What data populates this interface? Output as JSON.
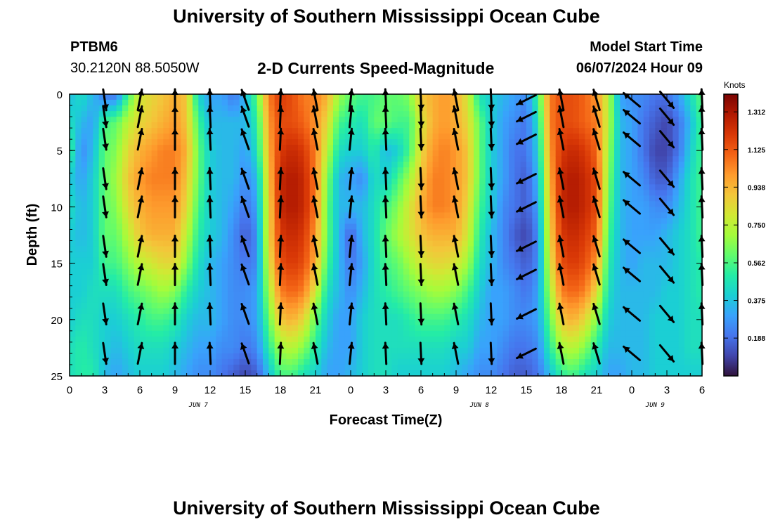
{
  "header": {
    "site_title": "University of Southern Mississippi Ocean Cube",
    "station_id": "PTBM6",
    "coordinates": "30.2120N  88.5050W",
    "chart_title": "2-D Currents Speed-Magnitude",
    "model_start_label": "Model Start Time",
    "model_start_value": "06/07/2024 Hour 09"
  },
  "footer": {
    "site_title": "University of Southern Mississippi Ocean Cube"
  },
  "colors": {
    "colormap": [
      "#30123b",
      "#4145ab",
      "#4675ed",
      "#39a2fc",
      "#1bcfd4",
      "#24eca6",
      "#61fc6c",
      "#a4fc3b",
      "#d1e834",
      "#f3c63a",
      "#fe9b2d",
      "#f36315",
      "#d93806",
      "#b11901",
      "#7a0403"
    ],
    "arrow": "#000000"
  },
  "chart_data": {
    "type": "heatmap",
    "title": "2-D Currents Speed-Magnitude",
    "xlabel": "Forecast Time(Z)",
    "ylabel": "Depth (ft)",
    "colorbar_label": "Knots",
    "x_range_hours": [
      0,
      54
    ],
    "y_range_ft": [
      0,
      25
    ],
    "y_inverted": true,
    "x_ticks": [
      {
        "hour": 0,
        "label": "0"
      },
      {
        "hour": 3,
        "label": "3"
      },
      {
        "hour": 6,
        "label": "6"
      },
      {
        "hour": 9,
        "label": "9"
      },
      {
        "hour": 12,
        "label": "12"
      },
      {
        "hour": 15,
        "label": "15"
      },
      {
        "hour": 18,
        "label": "18"
      },
      {
        "hour": 21,
        "label": "21"
      },
      {
        "hour": 24,
        "label": "0"
      },
      {
        "hour": 27,
        "label": "3"
      },
      {
        "hour": 30,
        "label": "6"
      },
      {
        "hour": 33,
        "label": "9"
      },
      {
        "hour": 36,
        "label": "12"
      },
      {
        "hour": 39,
        "label": "15"
      },
      {
        "hour": 42,
        "label": "18"
      },
      {
        "hour": 45,
        "label": "21"
      },
      {
        "hour": 48,
        "label": "0"
      },
      {
        "hour": 51,
        "label": "3"
      },
      {
        "hour": 54,
        "label": "6"
      }
    ],
    "y_ticks": [
      {
        "depth": 0,
        "label": "0"
      },
      {
        "depth": 5,
        "label": "5"
      },
      {
        "depth": 10,
        "label": "10"
      },
      {
        "depth": 15,
        "label": "15"
      },
      {
        "depth": 20,
        "label": "20"
      },
      {
        "depth": 25,
        "label": "25"
      }
    ],
    "day_labels": [
      {
        "hour": 11,
        "label": "JUN 7"
      },
      {
        "hour": 35,
        "label": "JUN 8"
      },
      {
        "hour": 50,
        "label": "JUN 9"
      }
    ],
    "colorbar": {
      "min": 0,
      "max": 1.4,
      "ticks": [
        "1.312",
        "1.125",
        "0.938",
        "0.750",
        "0.562",
        "0.375",
        "0.188"
      ],
      "tick_values": [
        1.312,
        1.125,
        0.938,
        0.75,
        0.562,
        0.375,
        0.188
      ]
    },
    "speed_profile": {
      "hours": [
        0,
        1,
        2,
        3,
        4,
        5,
        6,
        7,
        8,
        9,
        10,
        11,
        12,
        13,
        14,
        15,
        16,
        17,
        18,
        19,
        20,
        21,
        22,
        23,
        24,
        25,
        26,
        27,
        28,
        29,
        30,
        31,
        32,
        33,
        34,
        35,
        36,
        37,
        38,
        39,
        40,
        41,
        42,
        43,
        44,
        45,
        46,
        47,
        48,
        49,
        50,
        51,
        52,
        53,
        54
      ],
      "depths_ft": [
        0,
        2.5,
        5,
        7.5,
        10,
        12.5,
        15,
        17.5,
        20,
        22.5,
        25
      ],
      "speed_knots": [
        [
          0.35,
          0.45,
          0.55,
          0.4,
          0.45,
          0.4,
          0.4,
          0.4,
          0.4,
          0.45,
          0.45
        ],
        [
          0.45,
          0.35,
          0.25,
          0.3,
          0.35,
          0.35,
          0.4,
          0.4,
          0.45,
          0.5,
          0.5
        ],
        [
          0.35,
          0.3,
          0.35,
          0.4,
          0.4,
          0.4,
          0.4,
          0.45,
          0.45,
          0.45,
          0.5
        ],
        [
          0.2,
          0.55,
          0.6,
          0.6,
          0.6,
          0.6,
          0.55,
          0.45,
          0.4,
          0.4,
          0.35
        ],
        [
          0.2,
          0.6,
          0.65,
          0.7,
          0.65,
          0.6,
          0.55,
          0.45,
          0.4,
          0.35,
          0.3
        ],
        [
          0.55,
          0.75,
          0.85,
          0.9,
          0.85,
          0.75,
          0.65,
          0.55,
          0.45,
          0.4,
          0.35
        ],
        [
          0.8,
          0.85,
          0.95,
          1.0,
          0.95,
          0.9,
          0.75,
          0.6,
          0.5,
          0.45,
          0.4
        ],
        [
          0.85,
          0.9,
          1.0,
          1.05,
          1.0,
          0.95,
          0.8,
          0.65,
          0.55,
          0.45,
          0.4
        ],
        [
          0.9,
          0.95,
          1.05,
          1.05,
          1.0,
          0.95,
          0.85,
          0.7,
          0.55,
          0.45,
          0.4
        ],
        [
          0.95,
          1.0,
          1.05,
          1.05,
          1.0,
          0.95,
          0.85,
          0.65,
          0.5,
          0.4,
          0.35
        ],
        [
          0.9,
          0.9,
          0.95,
          0.9,
          0.85,
          0.75,
          0.65,
          0.5,
          0.4,
          0.35,
          0.3
        ],
        [
          0.4,
          0.55,
          0.6,
          0.6,
          0.55,
          0.5,
          0.45,
          0.4,
          0.35,
          0.3,
          0.25
        ],
        [
          0.3,
          0.35,
          0.4,
          0.4,
          0.4,
          0.4,
          0.35,
          0.35,
          0.35,
          0.3,
          0.25
        ],
        [
          0.3,
          0.35,
          0.35,
          0.35,
          0.35,
          0.35,
          0.3,
          0.3,
          0.3,
          0.25,
          0.2
        ],
        [
          0.2,
          0.35,
          0.35,
          0.35,
          0.3,
          0.25,
          0.25,
          0.25,
          0.25,
          0.25,
          0.15
        ],
        [
          0.35,
          0.35,
          0.3,
          0.25,
          0.2,
          0.15,
          0.2,
          0.25,
          0.25,
          0.2,
          0.1
        ],
        [
          0.6,
          0.5,
          0.45,
          0.35,
          0.3,
          0.25,
          0.25,
          0.3,
          0.3,
          0.25,
          0.15
        ],
        [
          1.05,
          1.0,
          0.95,
          0.9,
          0.85,
          0.85,
          0.8,
          0.7,
          0.6,
          0.5,
          0.35
        ],
        [
          1.2,
          1.15,
          1.2,
          1.25,
          1.25,
          1.2,
          1.15,
          1.05,
          0.9,
          0.7,
          0.55
        ],
        [
          1.15,
          1.15,
          1.25,
          1.3,
          1.3,
          1.25,
          1.2,
          1.1,
          0.95,
          0.75,
          0.55
        ],
        [
          1.05,
          1.1,
          1.2,
          1.25,
          1.25,
          1.2,
          1.15,
          1.05,
          0.85,
          0.65,
          0.45
        ],
        [
          1.05,
          1.0,
          1.05,
          1.05,
          1.05,
          1.0,
          0.95,
          0.8,
          0.6,
          0.5,
          0.4
        ],
        [
          0.95,
          0.85,
          0.75,
          0.65,
          0.6,
          0.6,
          0.55,
          0.45,
          0.4,
          0.35,
          0.3
        ],
        [
          0.7,
          0.55,
          0.45,
          0.35,
          0.35,
          0.35,
          0.35,
          0.35,
          0.3,
          0.3,
          0.3
        ],
        [
          0.6,
          0.5,
          0.4,
          0.3,
          0.35,
          0.15,
          0.2,
          0.25,
          0.3,
          0.3,
          0.35
        ],
        [
          0.55,
          0.45,
          0.4,
          0.25,
          0.35,
          0.35,
          0.3,
          0.35,
          0.4,
          0.4,
          0.4
        ],
        [
          0.55,
          0.6,
          0.5,
          0.45,
          0.45,
          0.45,
          0.45,
          0.45,
          0.45,
          0.45,
          0.45
        ],
        [
          0.6,
          0.6,
          0.35,
          0.4,
          0.55,
          0.6,
          0.55,
          0.5,
          0.45,
          0.45,
          0.45
        ],
        [
          0.6,
          0.55,
          0.4,
          0.55,
          0.65,
          0.7,
          0.6,
          0.55,
          0.45,
          0.45,
          0.4
        ],
        [
          0.65,
          0.55,
          0.55,
          0.7,
          0.8,
          0.8,
          0.7,
          0.6,
          0.5,
          0.45,
          0.4
        ],
        [
          0.9,
          0.8,
          0.85,
          0.9,
          0.95,
          0.9,
          0.8,
          0.65,
          0.55,
          0.45,
          0.4
        ],
        [
          0.95,
          0.95,
          1.0,
          1.05,
          1.05,
          0.95,
          0.85,
          0.7,
          0.55,
          0.45,
          0.4
        ],
        [
          1.0,
          1.0,
          1.05,
          1.05,
          1.05,
          0.95,
          0.85,
          0.7,
          0.55,
          0.45,
          0.4
        ],
        [
          0.95,
          0.95,
          1.0,
          1.0,
          1.0,
          0.95,
          0.8,
          0.65,
          0.5,
          0.4,
          0.35
        ],
        [
          0.8,
          0.85,
          0.9,
          0.9,
          0.85,
          0.8,
          0.7,
          0.55,
          0.45,
          0.4,
          0.3
        ],
        [
          0.45,
          0.6,
          0.6,
          0.6,
          0.55,
          0.5,
          0.45,
          0.4,
          0.35,
          0.3,
          0.25
        ],
        [
          0.4,
          0.4,
          0.4,
          0.4,
          0.4,
          0.35,
          0.35,
          0.3,
          0.3,
          0.3,
          0.25
        ],
        [
          0.35,
          0.3,
          0.3,
          0.3,
          0.25,
          0.25,
          0.25,
          0.3,
          0.3,
          0.25,
          0.2
        ],
        [
          0.3,
          0.25,
          0.2,
          0.2,
          0.2,
          0.15,
          0.2,
          0.25,
          0.25,
          0.2,
          0.15
        ],
        [
          0.25,
          0.2,
          0.2,
          0.15,
          0.15,
          0.1,
          0.15,
          0.2,
          0.25,
          0.2,
          0.15
        ],
        [
          0.55,
          0.45,
          0.4,
          0.35,
          0.3,
          0.25,
          0.25,
          0.3,
          0.3,
          0.25,
          0.2
        ],
        [
          1.05,
          1.05,
          1.0,
          0.95,
          0.9,
          0.85,
          0.8,
          0.7,
          0.6,
          0.5,
          0.35
        ],
        [
          1.15,
          1.15,
          1.2,
          1.25,
          1.25,
          1.2,
          1.15,
          1.05,
          0.9,
          0.7,
          0.5
        ],
        [
          1.15,
          1.15,
          1.25,
          1.3,
          1.3,
          1.25,
          1.2,
          1.1,
          0.95,
          0.75,
          0.55
        ],
        [
          1.1,
          1.1,
          1.2,
          1.25,
          1.25,
          1.2,
          1.15,
          1.05,
          0.85,
          0.65,
          0.45
        ],
        [
          1.0,
          1.05,
          1.1,
          1.15,
          1.15,
          1.1,
          1.0,
          0.85,
          0.65,
          0.5,
          0.4
        ],
        [
          0.75,
          0.75,
          0.7,
          0.65,
          0.6,
          0.55,
          0.5,
          0.45,
          0.4,
          0.35,
          0.3
        ],
        [
          0.3,
          0.35,
          0.35,
          0.35,
          0.35,
          0.35,
          0.35,
          0.35,
          0.35,
          0.35,
          0.3
        ],
        [
          0.25,
          0.3,
          0.3,
          0.3,
          0.3,
          0.3,
          0.3,
          0.35,
          0.35,
          0.35,
          0.35
        ],
        [
          0.25,
          0.2,
          0.2,
          0.25,
          0.3,
          0.3,
          0.35,
          0.35,
          0.35,
          0.35,
          0.35
        ],
        [
          0.2,
          0.15,
          0.1,
          0.15,
          0.25,
          0.3,
          0.35,
          0.35,
          0.4,
          0.4,
          0.4
        ],
        [
          0.2,
          0.1,
          0.1,
          0.15,
          0.25,
          0.35,
          0.35,
          0.4,
          0.4,
          0.4,
          0.4
        ],
        [
          0.3,
          0.2,
          0.2,
          0.3,
          0.35,
          0.4,
          0.4,
          0.4,
          0.4,
          0.4,
          0.4
        ],
        [
          0.45,
          0.35,
          0.4,
          0.45,
          0.45,
          0.45,
          0.45,
          0.45,
          0.45,
          0.45,
          0.4
        ],
        [
          0.6,
          0.55,
          0.55,
          0.55,
          0.55,
          0.55,
          0.5,
          0.5,
          0.45,
          0.45,
          0.4
        ]
      ]
    },
    "vectors": [
      {
        "h": 3,
        "dir": [
          0.15,
          -1
        ]
      },
      {
        "h": 6,
        "dir": [
          0.2,
          1
        ]
      },
      {
        "h": 9,
        "dir": [
          0,
          1
        ]
      },
      {
        "h": 12,
        "dir": [
          -0.05,
          1
        ]
      },
      {
        "h": 15,
        "dir": [
          -0.35,
          1
        ]
      },
      {
        "h": 18,
        "dir": [
          0.05,
          1
        ]
      },
      {
        "h": 21,
        "dir": [
          -0.2,
          1
        ]
      },
      {
        "h": 24,
        "dir": [
          0.1,
          1
        ]
      },
      {
        "h": 27,
        "dir": [
          -0.05,
          1
        ]
      },
      {
        "h": 30,
        "dir": [
          0.05,
          -1
        ]
      },
      {
        "h": 33,
        "dir": [
          -0.2,
          1
        ]
      },
      {
        "h": 36,
        "dir": [
          0.05,
          -1
        ]
      },
      {
        "h": 39,
        "dir": [
          -1,
          -0.5
        ]
      },
      {
        "h": 42,
        "dir": [
          -0.2,
          1
        ]
      },
      {
        "h": 45,
        "dir": [
          -0.3,
          1
        ]
      },
      {
        "h": 48,
        "dir": [
          -0.6,
          0.5
        ]
      },
      {
        "h": 51,
        "dir": [
          0.5,
          -0.6
        ]
      },
      {
        "h": 54,
        "dir": [
          -0.05,
          1
        ]
      }
    ]
  }
}
